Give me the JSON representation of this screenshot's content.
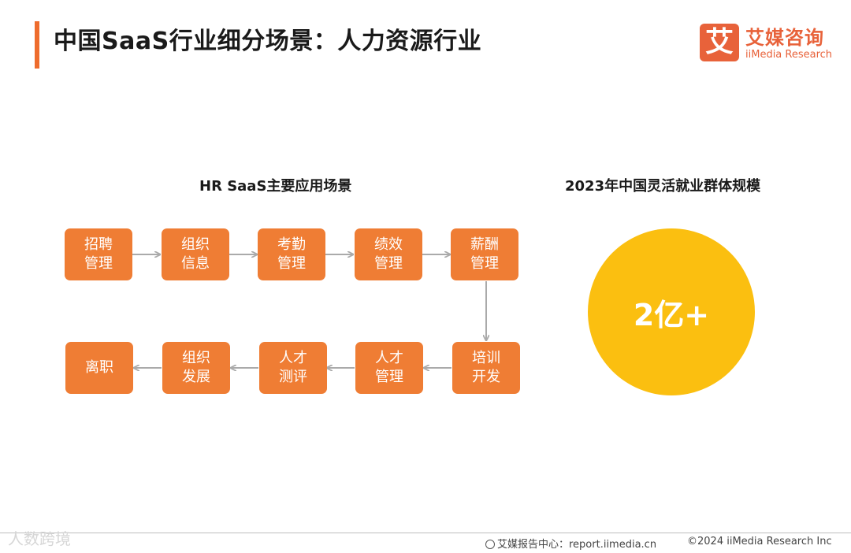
{
  "header": {
    "title": "中国SaaS行业细分场景：人力资源行业",
    "logo_mark": "艾",
    "logo_cn": "艾媒咨询",
    "logo_en": "iiMedia Research"
  },
  "diagram": {
    "title": "HR SaaS主要应用场景",
    "steps": [
      {
        "label": "招聘\n管理"
      },
      {
        "label": "组织\n信息"
      },
      {
        "label": "考勤\n管理"
      },
      {
        "label": "绩效\n管理"
      },
      {
        "label": "薪酬\n管理"
      },
      {
        "label": "培训\n开发"
      },
      {
        "label": "人才\n管理"
      },
      {
        "label": "人才\n测评"
      },
      {
        "label": "组织\n发展"
      },
      {
        "label": "离职"
      }
    ]
  },
  "stat": {
    "title": "2023年中国灵活就业群体规模",
    "value": "2亿+",
    "color": "#fbbf10"
  },
  "footer": {
    "watermark": "人数跨境",
    "report": "艾媒报告中心：report.iimedia.cn",
    "copyright": "©2024 iiMedia Research Inc"
  },
  "colors": {
    "accent": "#ee6c2d",
    "step_fill": "#ef7d34",
    "arrow": "#aaaaaa"
  }
}
